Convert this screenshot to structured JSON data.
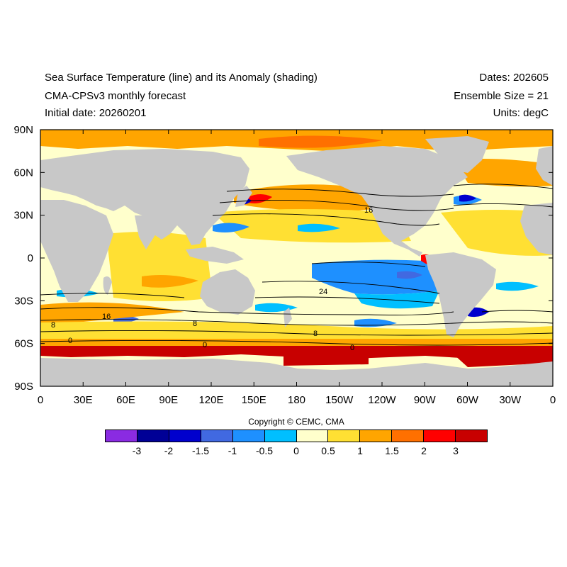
{
  "header": {
    "title": "Sea Surface Temperature (line) and its Anomaly (shading)",
    "model": "CMA-CPSv3 monthly forecast",
    "initial_date": "Initial date: 20260201",
    "dates": "Dates: 202605",
    "ensemble": "Ensemble Size = 21",
    "units": "Units: degC"
  },
  "map": {
    "projection": "equirectangular",
    "lon_range": [
      0,
      360
    ],
    "lat_range": [
      -90,
      90
    ],
    "x_ticks": [
      "0",
      "30E",
      "60E",
      "90E",
      "120E",
      "150E",
      "180",
      "150W",
      "120W",
      "90W",
      "60W",
      "30W",
      "0"
    ],
    "y_ticks": [
      "90N",
      "60N",
      "30N",
      "0",
      "30S",
      "60S",
      "90S"
    ],
    "land_color": "#c8c8c8",
    "contour_labels": [
      "16",
      "24",
      "16",
      "8",
      "0",
      "8",
      "8",
      "0",
      "0"
    ]
  },
  "colorbar": {
    "colors": [
      "#8a2be2",
      "#000096",
      "#0000cd",
      "#4169e1",
      "#1e90ff",
      "#00bfff",
      "#ffffcc",
      "#ffe033",
      "#ffa500",
      "#ff7000",
      "#ff0000",
      "#c80000"
    ],
    "labels": [
      "-3",
      "-2",
      "-1.5",
      "-1",
      "-0.5",
      "0",
      "0.5",
      "1",
      "1.5",
      "2",
      "3"
    ]
  },
  "copyright": "Copyright © CEMC, CMA"
}
